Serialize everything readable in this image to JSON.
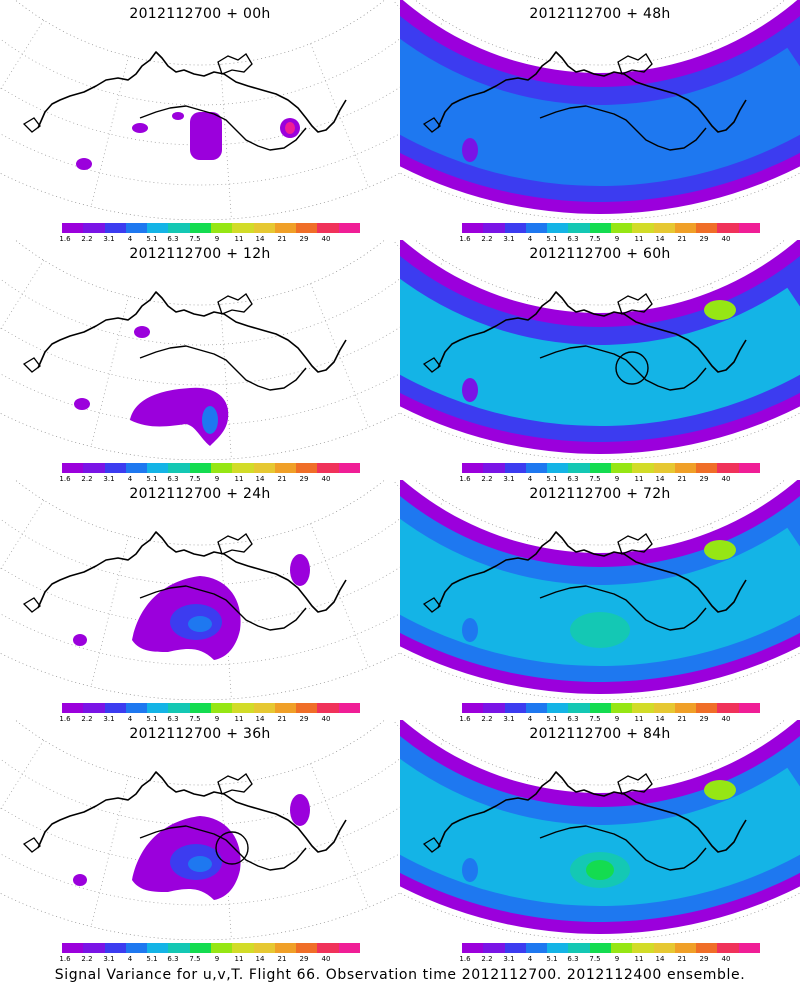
{
  "panels": [
    {
      "title": "2012112700 + 00h",
      "level": 0,
      "circle": false
    },
    {
      "title": "2012112700 + 48h",
      "level": 3,
      "circle": false
    },
    {
      "title": "2012112700 + 12h",
      "level": 1,
      "circle": false
    },
    {
      "title": "2012112700 + 60h",
      "level": 4,
      "circle": true
    },
    {
      "title": "2012112700 + 24h",
      "level": 2,
      "circle": false
    },
    {
      "title": "2012112700 + 72h",
      "level": 5,
      "circle": false
    },
    {
      "title": "2012112700 + 36h",
      "level": 2,
      "circle": true
    },
    {
      "title": "2012112700 + 84h",
      "level": 6,
      "circle": false
    }
  ],
  "colorbar": {
    "labels": [
      "1.6",
      "2.2",
      "3.1",
      "4",
      "5.1",
      "6.3",
      "7.5",
      "9",
      "11",
      "14",
      "21",
      "29",
      "40"
    ],
    "colors": [
      "#9b00dc",
      "#7a14e6",
      "#3c3cf0",
      "#1e78f0",
      "#14b4e6",
      "#14c8b4",
      "#14dc50",
      "#96e614",
      "#d2dc28",
      "#e6c832",
      "#f0a028",
      "#f06e28",
      "#f0325a",
      "#f01e96"
    ]
  },
  "footer": "Signal Variance for u,v,T. Flight 66. Observation time 2012112700. 2012112400 ensemble."
}
